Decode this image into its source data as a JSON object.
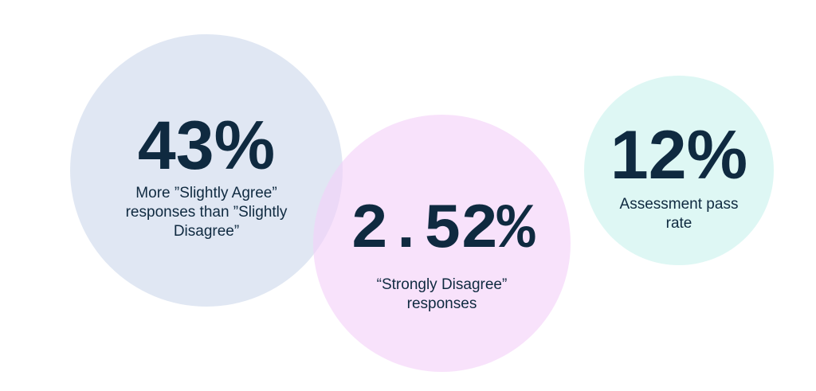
{
  "colors": {
    "text": "#0f2a40",
    "bubble_blue": "#d4deee",
    "bubble_pink": "#f4d0f8",
    "bubble_mint": "#daf6f3"
  },
  "stats": [
    {
      "value": "43%",
      "label": "More ”Slightly Agree” responses than ”Slightly Disagree”"
    },
    {
      "value": "2.52%",
      "label": "“Strongly Disagree” responses"
    },
    {
      "value": "12%",
      "label": "Assessment pass rate"
    }
  ]
}
